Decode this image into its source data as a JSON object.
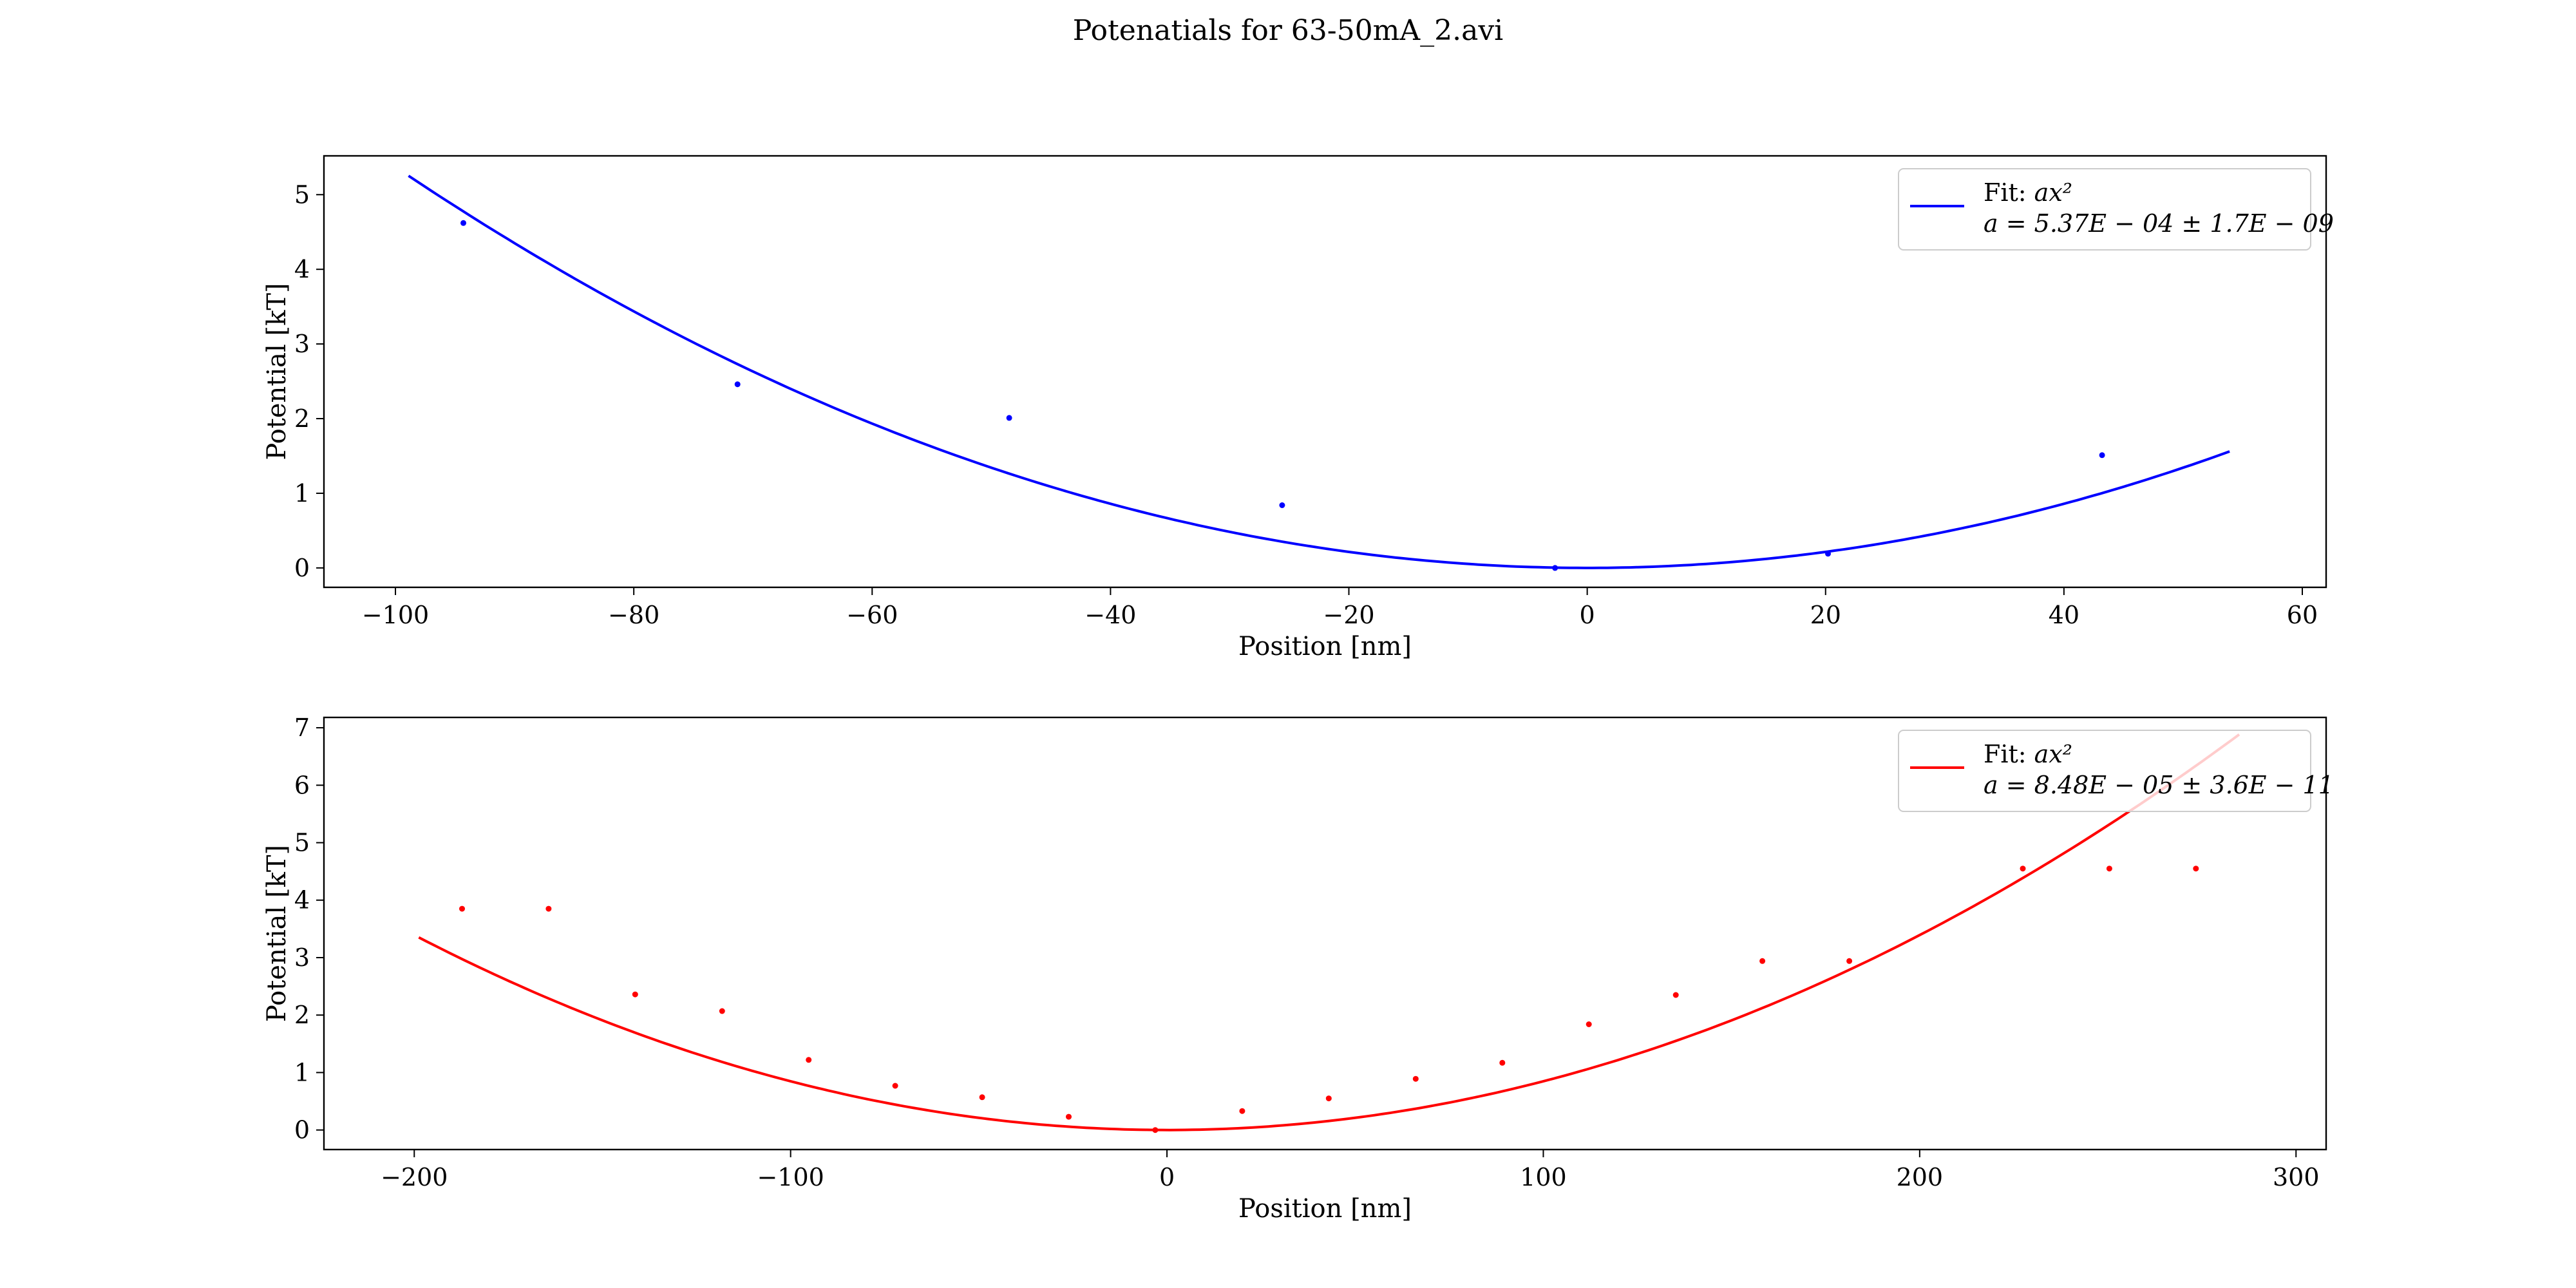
{
  "figure": {
    "title": "Potenatials for 63-50mA_2.avi"
  },
  "chart_data": [
    {
      "type": "scatter",
      "xlabel": "Position [nm]",
      "ylabel": "Potential [kT]",
      "xlim": [
        -106,
        62
      ],
      "ylim": [
        -0.26,
        5.52
      ],
      "xticks": [
        -100,
        -80,
        -60,
        -40,
        -20,
        0,
        20,
        40,
        60
      ],
      "yticks": [
        0,
        1,
        2,
        3,
        4,
        5
      ],
      "color": "#0000ff",
      "legend_position": "top-right",
      "points": [
        {
          "x": -94.3,
          "y": 4.62
        },
        {
          "x": -71.3,
          "y": 2.46
        },
        {
          "x": -48.5,
          "y": 2.01
        },
        {
          "x": -25.6,
          "y": 0.84
        },
        {
          "x": -2.7,
          "y": 0.0
        },
        {
          "x": 20.2,
          "y": 0.19
        },
        {
          "x": 43.2,
          "y": 1.51
        }
      ],
      "fit": {
        "a": 0.000537,
        "x_range": [
          -98.9,
          53.9
        ]
      },
      "legend": {
        "line1_prefix": "Fit: ",
        "line1_math": "ax²",
        "line2": "a = 5.37E − 04 ± 1.7E − 09"
      }
    },
    {
      "type": "scatter",
      "xlabel": "Position [nm]",
      "ylabel": "Potential [kT]",
      "xlim": [
        -224,
        308
      ],
      "ylim": [
        -0.34,
        7.18
      ],
      "xticks": [
        -200,
        -100,
        0,
        100,
        200,
        300
      ],
      "yticks": [
        0,
        1,
        2,
        3,
        4,
        5,
        6,
        7
      ],
      "color": "#ff0000",
      "legend_position": "top-right",
      "points": [
        {
          "x": -187.3,
          "y": 3.85
        },
        {
          "x": -164.3,
          "y": 3.85
        },
        {
          "x": -141.3,
          "y": 2.36
        },
        {
          "x": -118.2,
          "y": 2.07
        },
        {
          "x": -95.2,
          "y": 1.22
        },
        {
          "x": -72.2,
          "y": 0.77
        },
        {
          "x": -49.1,
          "y": 0.57
        },
        {
          "x": -26.1,
          "y": 0.23
        },
        {
          "x": -3.1,
          "y": 0.0
        },
        {
          "x": 20.0,
          "y": 0.33
        },
        {
          "x": 43.0,
          "y": 0.55
        },
        {
          "x": 66.1,
          "y": 0.89
        },
        {
          "x": 89.1,
          "y": 1.17
        },
        {
          "x": 112.1,
          "y": 1.84
        },
        {
          "x": 135.2,
          "y": 2.35
        },
        {
          "x": 158.2,
          "y": 2.94
        },
        {
          "x": 181.3,
          "y": 2.94
        },
        {
          "x": 227.4,
          "y": 4.55
        },
        {
          "x": 250.4,
          "y": 4.55
        },
        {
          "x": 273.4,
          "y": 4.55
        }
      ],
      "fit": {
        "a": 8.48e-05,
        "x_range": [
          -198.8,
          284.9
        ]
      },
      "legend": {
        "line1_prefix": "Fit: ",
        "line1_math": "ax²",
        "line2": "a = 8.48E − 05 ± 3.6E − 11"
      }
    }
  ]
}
